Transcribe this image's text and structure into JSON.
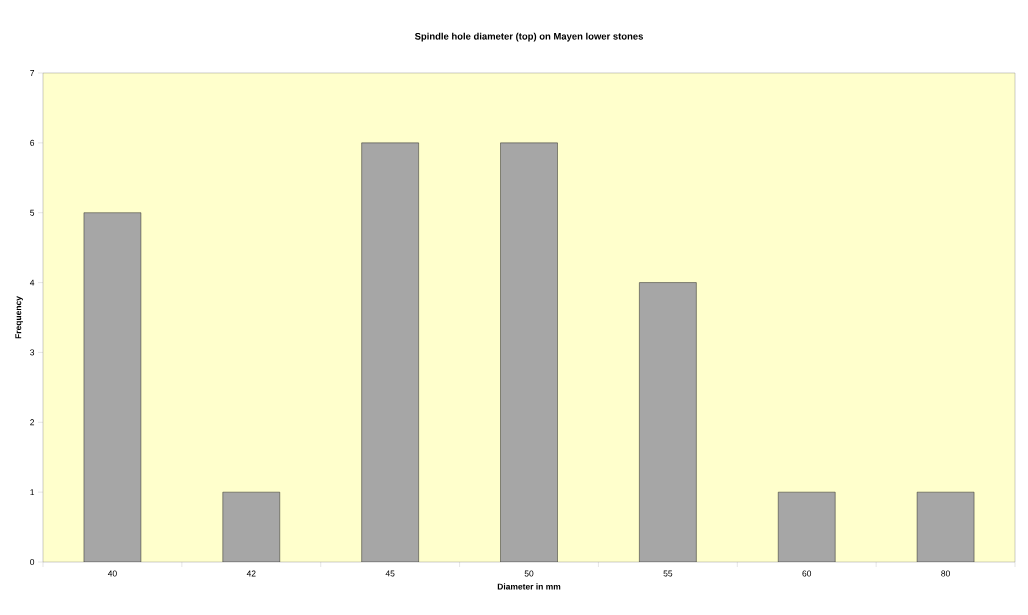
{
  "chart_data": {
    "type": "bar",
    "title": "Spindle hole diameter (top) on Mayen lower stones",
    "xlabel": "Diameter in mm",
    "ylabel": "Frequency",
    "categories": [
      "40",
      "42",
      "45",
      "50",
      "55",
      "60",
      "80"
    ],
    "values": [
      5,
      1,
      6,
      6,
      4,
      1,
      1
    ],
    "color": "#a6a6a6",
    "ylim": [
      0,
      7
    ],
    "yticks": [
      0,
      1,
      2,
      3,
      4,
      5,
      6,
      7
    ]
  }
}
